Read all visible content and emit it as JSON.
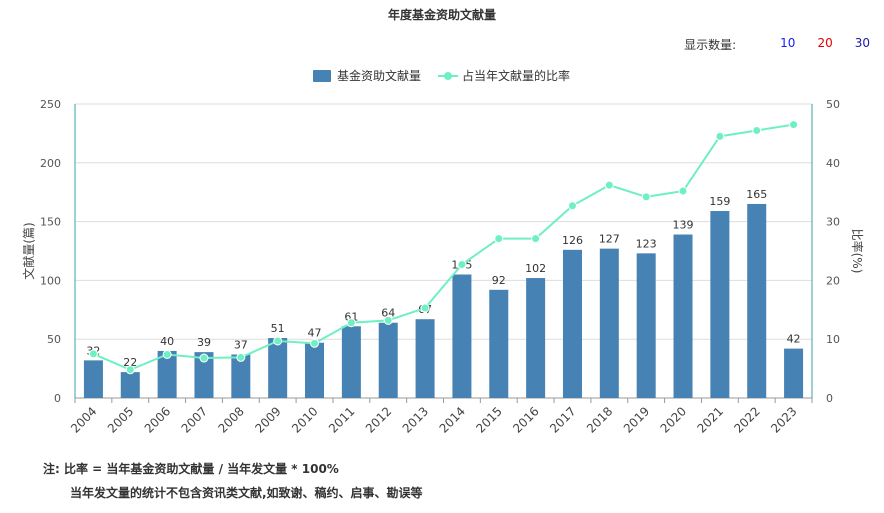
{
  "title": "年度基金资助文献量",
  "count_selector": {
    "label": "显示数量:",
    "options": [
      {
        "label": "10",
        "color": "#1a1aff"
      },
      {
        "label": "20",
        "color": "#e60000"
      },
      {
        "label": "30",
        "color": "#1a1aa6"
      }
    ]
  },
  "notes": {
    "line1": "注:  比率 = 当年基金资助文献量 / 当年发文量 * 100%",
    "line2": "当年发文量的统计不包含资讯类文献,如致谢、稿约、启事、勘误等"
  },
  "colors": {
    "bar": "#4682b4",
    "line": "#6ef0c4",
    "axis_right": "#3aa3a3"
  },
  "chart_data": {
    "type": "bar",
    "categories": [
      "2004",
      "2005",
      "2006",
      "2007",
      "2008",
      "2009",
      "2010",
      "2011",
      "2012",
      "2013",
      "2014",
      "2015",
      "2016",
      "2017",
      "2018",
      "2019",
      "2020",
      "2021",
      "2022",
      "2023"
    ],
    "series": [
      {
        "name": "基金资助文献量",
        "type": "bar",
        "values": [
          32,
          22,
          40,
          39,
          37,
          51,
          47,
          61,
          64,
          67,
          105,
          92,
          102,
          126,
          127,
          123,
          139,
          159,
          165,
          42
        ]
      },
      {
        "name": "占当年文献量的比率",
        "type": "line",
        "axis": "right",
        "values": [
          7.5,
          4.8,
          7.4,
          6.8,
          6.9,
          9.7,
          9.3,
          12.8,
          13.2,
          15.3,
          22.7,
          27.1,
          27.1,
          32.7,
          36.2,
          34.2,
          35.2,
          44.5,
          45.5,
          46.5
        ]
      }
    ],
    "ylabel": "文献量(篇)",
    "ylabel_right": "比率(%)",
    "ylim": [
      0,
      250
    ],
    "yticks": [
      0,
      50,
      100,
      150,
      200,
      250
    ],
    "ylim_right": [
      0,
      50
    ],
    "yticks_right": [
      0,
      10,
      20,
      30,
      40,
      50
    ],
    "legend_placement": "top-center",
    "grid": true
  }
}
